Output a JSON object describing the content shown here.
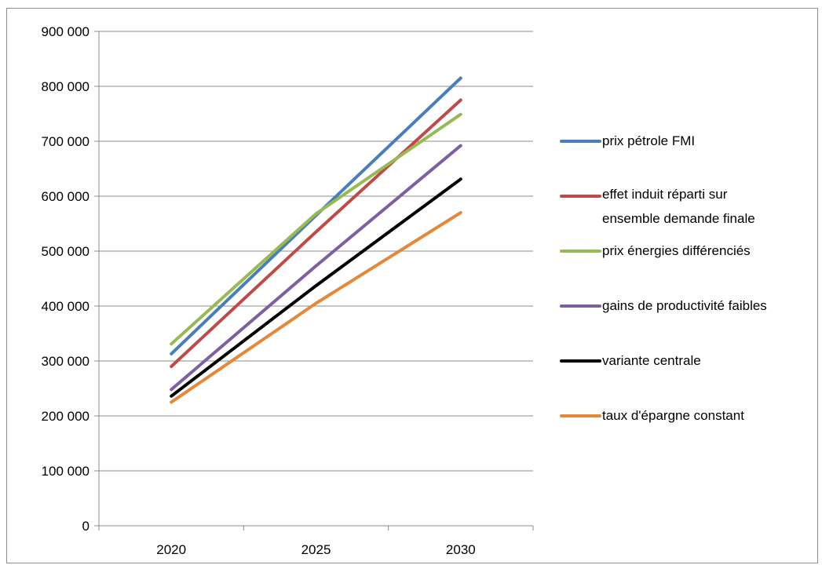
{
  "chart_data": {
    "type": "line",
    "x": [
      "2020",
      "2025",
      "2030"
    ],
    "ylim": [
      0,
      900000
    ],
    "yticks": [
      0,
      100000,
      200000,
      300000,
      400000,
      500000,
      600000,
      700000,
      800000,
      900000
    ],
    "ytick_labels": [
      "0",
      "100 000",
      "200 000",
      "300 000",
      "400 000",
      "500 000",
      "600 000",
      "700 000",
      "800 000",
      "900 000"
    ],
    "grid": true,
    "legend_position": "right",
    "title": "",
    "xlabel": "",
    "ylabel": "",
    "series": [
      {
        "name": "prix pétrole FMI",
        "color": "#4a7ebb",
        "values": [
          313000,
          565000,
          815000
        ]
      },
      {
        "name": "effet induit réparti sur ensemble demande finale",
        "color": "#be4b48",
        "values": [
          290000,
          535000,
          775000
        ]
      },
      {
        "name": "prix énergies différenciés",
        "color": "#98b954",
        "values": [
          331000,
          568000,
          749000
        ]
      },
      {
        "name": "gains de productivité faibles",
        "color": "#7d60a0",
        "values": [
          248000,
          473000,
          692000
        ]
      },
      {
        "name": "variante centrale",
        "color": "#000000",
        "values": [
          236000,
          437000,
          631000
        ]
      },
      {
        "name": "taux d'épargne constant",
        "color": "#e4883b",
        "values": [
          225000,
          405000,
          570000
        ]
      }
    ]
  }
}
